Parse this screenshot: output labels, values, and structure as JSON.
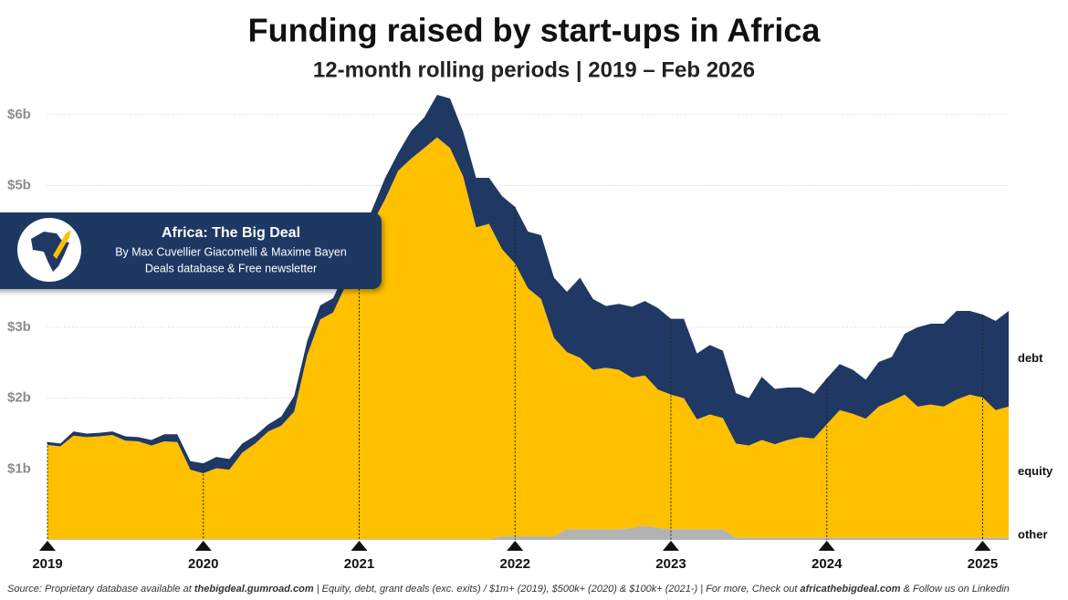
{
  "chart_data": {
    "type": "stacked_area",
    "title": "Funding raised by start-ups in Africa",
    "subtitle": "12-month rolling periods | 2019 – Feb 2026",
    "banner": {
      "title": "Africa: The Big Deal",
      "line1": "By Max Cuvellier Giacomelli & Maxime Bayen",
      "line2": "Deals database & Free newsletter"
    },
    "source": [
      "Source: Proprietary database available at ",
      "thebigdeal.gumroad.com",
      " | Equity, debt, grant deals (exc. exits) / $1m+ (2019), $500k+ (2020) & $100k+ (2021-) | For more, Check out ",
      "africathebigdeal.com",
      " & Follow us on Linkedin"
    ],
    "x": [
      2019,
      2019.083,
      2019.167,
      2019.25,
      2019.333,
      2019.417,
      2019.5,
      2019.583,
      2019.667,
      2019.75,
      2019.833,
      2019.917,
      2020,
      2020.083,
      2020.167,
      2020.25,
      2020.333,
      2020.417,
      2020.5,
      2020.583,
      2020.667,
      2020.75,
      2020.833,
      2020.917,
      2021,
      2021.083,
      2021.167,
      2021.25,
      2021.333,
      2021.417,
      2021.5,
      2021.583,
      2021.667,
      2021.75,
      2021.833,
      2021.917,
      2022,
      2022.083,
      2022.167,
      2022.25,
      2022.333,
      2022.417,
      2022.5,
      2022.583,
      2022.667,
      2022.75,
      2022.833,
      2022.917,
      2023,
      2023.083,
      2023.167,
      2023.25,
      2023.333,
      2023.417,
      2023.5,
      2023.583,
      2023.667,
      2023.75,
      2023.833,
      2023.917,
      2024,
      2024.083,
      2024.167,
      2024.25,
      2024.333,
      2024.417,
      2024.5,
      2024.583,
      2024.667,
      2024.75,
      2024.833,
      2024.917,
      2025,
      2025.083,
      2025.167
    ],
    "series": [
      {
        "name": "other",
        "color": "#b3b3b3",
        "values": [
          0.01,
          0.01,
          0.01,
          0.01,
          0.01,
          0.01,
          0.01,
          0.01,
          0.01,
          0.01,
          0.01,
          0.01,
          0.01,
          0.01,
          0.01,
          0.01,
          0.01,
          0.01,
          0.01,
          0.01,
          0.01,
          0.01,
          0.01,
          0.01,
          0.01,
          0.01,
          0.01,
          0.01,
          0.01,
          0.01,
          0.01,
          0.01,
          0.01,
          0.01,
          0.01,
          0.05,
          0.05,
          0.05,
          0.05,
          0.05,
          0.15,
          0.15,
          0.15,
          0.15,
          0.15,
          0.17,
          0.2,
          0.17,
          0.15,
          0.15,
          0.15,
          0.15,
          0.15,
          0.03,
          0.03,
          0.03,
          0.03,
          0.03,
          0.03,
          0.03,
          0.03,
          0.03,
          0.03,
          0.03,
          0.03,
          0.03,
          0.03,
          0.03,
          0.03,
          0.03,
          0.03,
          0.03,
          0.03,
          0.03,
          0.03
        ]
      },
      {
        "name": "equity",
        "color": "#ffc000",
        "values": [
          1.33,
          1.31,
          1.46,
          1.44,
          1.45,
          1.47,
          1.39,
          1.38,
          1.32,
          1.38,
          1.37,
          0.98,
          0.93,
          1.0,
          0.98,
          1.22,
          1.35,
          1.52,
          1.6,
          1.8,
          2.6,
          3.1,
          3.2,
          3.6,
          4.0,
          4.45,
          4.8,
          5.2,
          5.37,
          5.52,
          5.67,
          5.52,
          5.12,
          4.4,
          4.45,
          4.05,
          3.85,
          3.5,
          3.35,
          2.8,
          2.5,
          2.42,
          2.25,
          2.28,
          2.25,
          2.12,
          2.12,
          1.95,
          1.9,
          1.85,
          1.55,
          1.62,
          1.57,
          1.33,
          1.3,
          1.38,
          1.32,
          1.38,
          1.42,
          1.4,
          1.6,
          1.8,
          1.75,
          1.68,
          1.85,
          1.93,
          2.02,
          1.85,
          1.88,
          1.85,
          1.95,
          2.02,
          1.98,
          1.8,
          1.85
        ]
      },
      {
        "name": "debt",
        "color": "#1f3864",
        "values": [
          0.04,
          0.04,
          0.06,
          0.05,
          0.05,
          0.05,
          0.06,
          0.06,
          0.08,
          0.1,
          0.11,
          0.12,
          0.14,
          0.16,
          0.15,
          0.13,
          0.11,
          0.1,
          0.13,
          0.22,
          0.2,
          0.2,
          0.2,
          0.2,
          0.2,
          0.2,
          0.3,
          0.25,
          0.39,
          0.43,
          0.6,
          0.7,
          0.63,
          0.7,
          0.65,
          0.75,
          0.8,
          0.8,
          0.9,
          0.85,
          0.85,
          1.13,
          1.0,
          0.87,
          0.93,
          1.0,
          1.05,
          1.15,
          1.07,
          1.12,
          0.93,
          0.98,
          0.95,
          0.71,
          0.67,
          0.89,
          0.78,
          0.74,
          0.7,
          0.63,
          0.65,
          0.65,
          0.62,
          0.55,
          0.63,
          0.62,
          0.86,
          1.12,
          1.14,
          1.17,
          1.25,
          1.18,
          1.17,
          1.26,
          1.35
        ]
      }
    ],
    "xlim": [
      2019,
      2025.167
    ],
    "xticks": [
      2019,
      2020,
      2021,
      2022,
      2023,
      2024,
      2025
    ],
    "ylim": [
      0,
      6.3
    ],
    "yticks": [
      {
        "value": 1,
        "label": "$1b"
      },
      {
        "value": 2,
        "label": "$2b"
      },
      {
        "value": 3,
        "label": "$3b"
      },
      {
        "value": 5,
        "label": "$5b"
      },
      {
        "value": 6,
        "label": "$6b"
      }
    ],
    "grid": true
  }
}
